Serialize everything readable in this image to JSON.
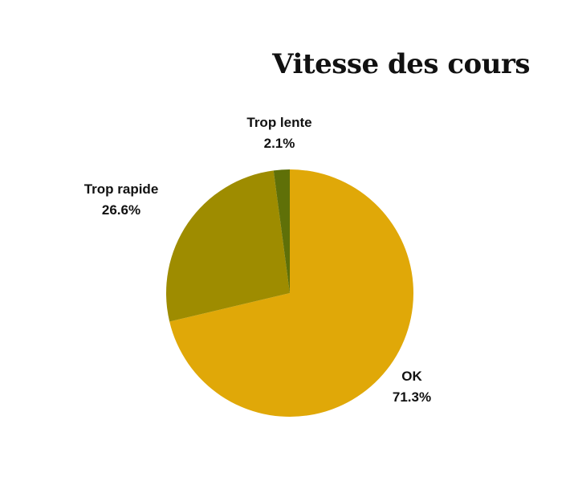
{
  "chart_data": {
    "type": "pie",
    "title": "Vitesse des cours",
    "slices": [
      {
        "label": "OK",
        "value": 71.3,
        "value_label": "71.3%",
        "color": "#E0A808"
      },
      {
        "label": "Trop rapide",
        "value": 26.6,
        "value_label": "26.6%",
        "color": "#9E8C00"
      },
      {
        "label": "Trop lente",
        "value": 2.1,
        "value_label": "2.1%",
        "color": "#5F7008"
      }
    ]
  }
}
